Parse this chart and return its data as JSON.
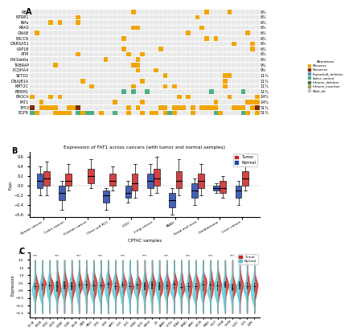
{
  "panel_A": {
    "title": "A",
    "genes": [
      "EGFR",
      "TP53",
      "FAT1",
      "PROCA",
      "PBRM1",
      "KMT2C",
      "DNAJB1A",
      "SETD2",
      "PCDHA4",
      "TRBRAP",
      "PIK3delta",
      "ATM",
      "LRP1B",
      "DNRSA51",
      "ERCC8",
      "GNAB",
      "KRAS",
      "INFa",
      "NTRB1",
      "RB1"
    ],
    "percentages": [
      "51%",
      "51%",
      "14%",
      "14%",
      "11%",
      "11%",
      "11%",
      "11%",
      "9%",
      "9%",
      "6%",
      "6%",
      "6%",
      "6%",
      "6%",
      "6%",
      "6%",
      "6%",
      "6%",
      "6%"
    ],
    "n_samples": 50,
    "alteration_colors": {
      "Missense": "#F0A500",
      "Nonsense": "#7B2D00",
      "Frameshift_deletion": "#5B8DB8",
      "Splice_variant": "#4CAF82",
      "Inframe_deletion": "#3E7E3E",
      "Inframe_insertion": "#A0A050",
      "Multi_hit": "#C0C0C0"
    },
    "bar_colors_right": [
      "#F0A500",
      "#7B2D00",
      "#5B8DB8",
      "#4CAF82",
      "#3E7E3E",
      "#A0A050",
      "#C0C0C0"
    ],
    "background": "#F5F5F5"
  },
  "panel_B": {
    "title": "Expression of FAT1 across cancers (with tumor and normal samples)",
    "xlabel": "CPTAC samples",
    "ylabel": "Expr.",
    "categories": [
      "Breast cancer",
      "Colon cancer",
      "Ovarian cancer",
      "Clear cell RCC",
      "UCEC",
      "Lung cancer",
      "PAAD",
      "Head and neck",
      "Glioblastoma",
      "Liver cancer"
    ],
    "tumor_color": "#CC2222",
    "normal_color": "#2244AA",
    "tumor_data": [
      {
        "median": 0.15,
        "q1": 0.0,
        "q3": 0.3,
        "whislo": -0.2,
        "whishi": 0.5
      },
      {
        "median": 0.1,
        "q1": 0.0,
        "q3": 0.25,
        "whislo": -0.1,
        "whishi": 0.45
      },
      {
        "median": 0.2,
        "q1": 0.05,
        "q3": 0.35,
        "whislo": -0.05,
        "whishi": 0.55
      },
      {
        "median": 0.1,
        "q1": 0.0,
        "q3": 0.25,
        "whislo": -0.1,
        "whishi": 0.4
      },
      {
        "median": 0.05,
        "q1": -0.1,
        "q3": 0.25,
        "whislo": -0.25,
        "whishi": 0.45
      },
      {
        "median": 0.15,
        "q1": 0.0,
        "q3": 0.35,
        "whislo": -0.15,
        "whishi": 0.6
      },
      {
        "median": 0.1,
        "q1": -0.05,
        "q3": 0.3,
        "whislo": -0.2,
        "whishi": 0.55
      },
      {
        "median": 0.1,
        "q1": -0.05,
        "q3": 0.25,
        "whislo": -0.2,
        "whishi": 0.45
      },
      {
        "median": -0.05,
        "q1": -0.15,
        "q3": 0.1,
        "whislo": -0.25,
        "whishi": 0.2
      },
      {
        "median": 0.15,
        "q1": 0.0,
        "q3": 0.3,
        "whislo": -0.1,
        "whishi": 0.5
      }
    ],
    "normal_data": [
      {
        "median": 0.1,
        "q1": -0.05,
        "q3": 0.25,
        "whislo": -0.2,
        "whishi": 0.4
      },
      {
        "median": -0.15,
        "q1": -0.3,
        "q3": 0.0,
        "whislo": -0.5,
        "whishi": 0.1
      },
      null,
      {
        "median": -0.2,
        "q1": -0.35,
        "q3": -0.1,
        "whislo": -0.5,
        "whishi": -0.05
      },
      {
        "median": -0.15,
        "q1": -0.25,
        "q3": 0.0,
        "whislo": -0.35,
        "whishi": 0.1
      },
      {
        "median": 0.1,
        "q1": -0.05,
        "q3": 0.25,
        "whislo": -0.2,
        "whishi": 0.45
      },
      {
        "median": -0.3,
        "q1": -0.45,
        "q3": -0.15,
        "whislo": -0.6,
        "whishi": -0.05
      },
      {
        "median": -0.1,
        "q1": -0.25,
        "q3": 0.05,
        "whislo": -0.4,
        "whishi": 0.15
      },
      {
        "median": -0.05,
        "q1": -0.1,
        "q3": 0.0,
        "whislo": -0.15,
        "whishi": 0.05
      },
      {
        "median": -0.1,
        "q1": -0.25,
        "q3": 0.0,
        "whislo": -0.4,
        "whishi": 0.1
      }
    ],
    "ylim": [
      -0.65,
      0.7
    ]
  },
  "panel_C": {
    "title": "C",
    "ylabel": "Expression",
    "tumor_color": "#CC2222",
    "normal_color": "#5BC8D0",
    "categories": [
      "BLCA",
      "BRCA",
      "CESC",
      "CHOL",
      "COAD",
      "DLBC",
      "ESCA",
      "GBM",
      "HNSC",
      "KIRC",
      "KIRP",
      "LAML",
      "LGG",
      "LIHC",
      "LUAD",
      "LUSC",
      "MESO",
      "OV",
      "PAAD",
      "PCPG",
      "PRAD",
      "READ",
      "SARC",
      "SKCM",
      "STAD",
      "TGCT",
      "THCA",
      "THYM",
      "UCEC",
      "UCS",
      "UVM"
    ]
  },
  "figure": {
    "bg_color": "#FFFFFF",
    "panel_label_fontsize": 7,
    "title_fontsize": 5,
    "tick_fontsize": 4
  }
}
